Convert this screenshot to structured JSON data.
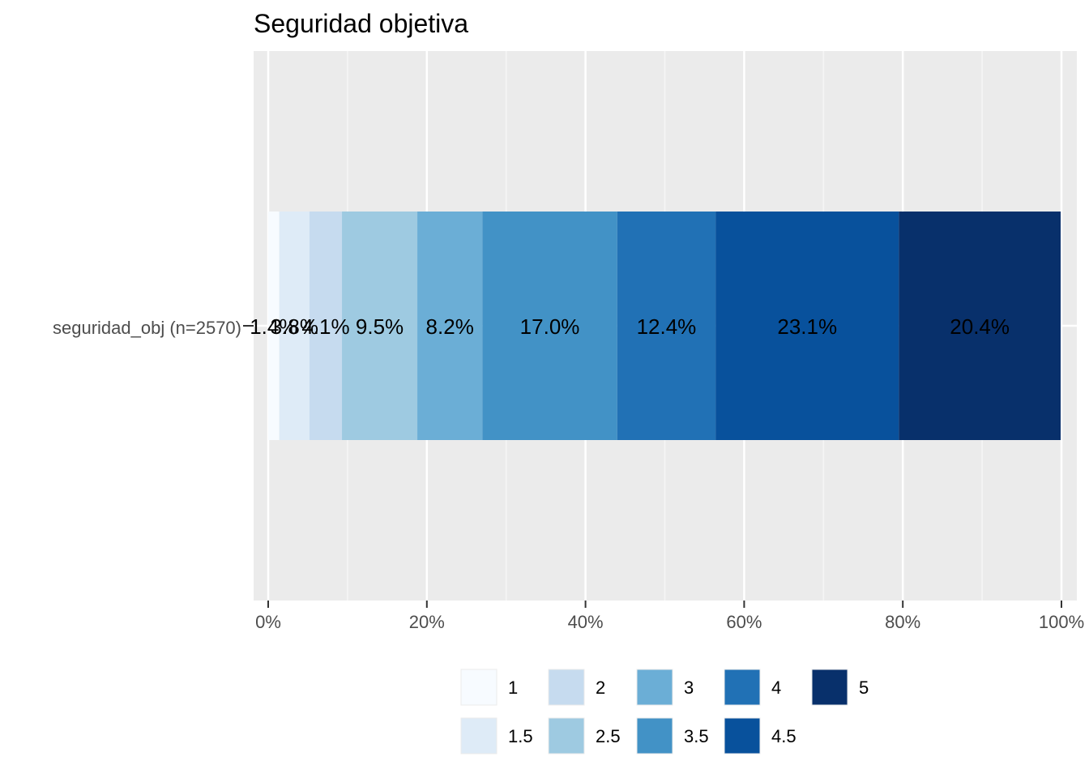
{
  "chart_data": {
    "type": "bar",
    "orientation": "horizontal",
    "stacked": true,
    "title": "Seguridad objetiva",
    "xlabel": "",
    "ylabel": "",
    "categories": [
      "seguridad_obj (n=2570)"
    ],
    "xlim": [
      0,
      100
    ],
    "x_ticks": [
      "0%",
      "20%",
      "40%",
      "60%",
      "80%",
      "100%"
    ],
    "x_tick_values": [
      0,
      20,
      40,
      60,
      80,
      100
    ],
    "grid": true,
    "legend_position": "bottom",
    "series": [
      {
        "name": "1",
        "values": [
          1.4
        ],
        "label": "1.4%",
        "color": "#F7FBFF"
      },
      {
        "name": "1.5",
        "values": [
          3.8
        ],
        "label": "3.8%",
        "color": "#DEEBF7"
      },
      {
        "name": "2",
        "values": [
          4.1
        ],
        "label": "4.1%",
        "color": "#C6DBEF"
      },
      {
        "name": "2.5",
        "values": [
          9.5
        ],
        "label": "9.5%",
        "color": "#9ECAE1"
      },
      {
        "name": "3",
        "values": [
          8.2
        ],
        "label": "8.2%",
        "color": "#6BAED6"
      },
      {
        "name": "3.5",
        "values": [
          17.0
        ],
        "label": "17.0%",
        "color": "#4292C6"
      },
      {
        "name": "4",
        "values": [
          12.4
        ],
        "label": "12.4%",
        "color": "#2171B5"
      },
      {
        "name": "4.5",
        "values": [
          23.1
        ],
        "label": "23.1%",
        "color": "#08519C"
      },
      {
        "name": "5",
        "values": [
          20.4
        ],
        "label": "20.4%",
        "color": "#08306B"
      }
    ],
    "colors": {
      "panel_background": "#EBEBEB",
      "grid_major": "#FFFFFF",
      "grid_minor": "#F5F5F5",
      "axis_text": "#4D4D4D",
      "title_text": "#000000",
      "label_text": "#000000"
    }
  }
}
